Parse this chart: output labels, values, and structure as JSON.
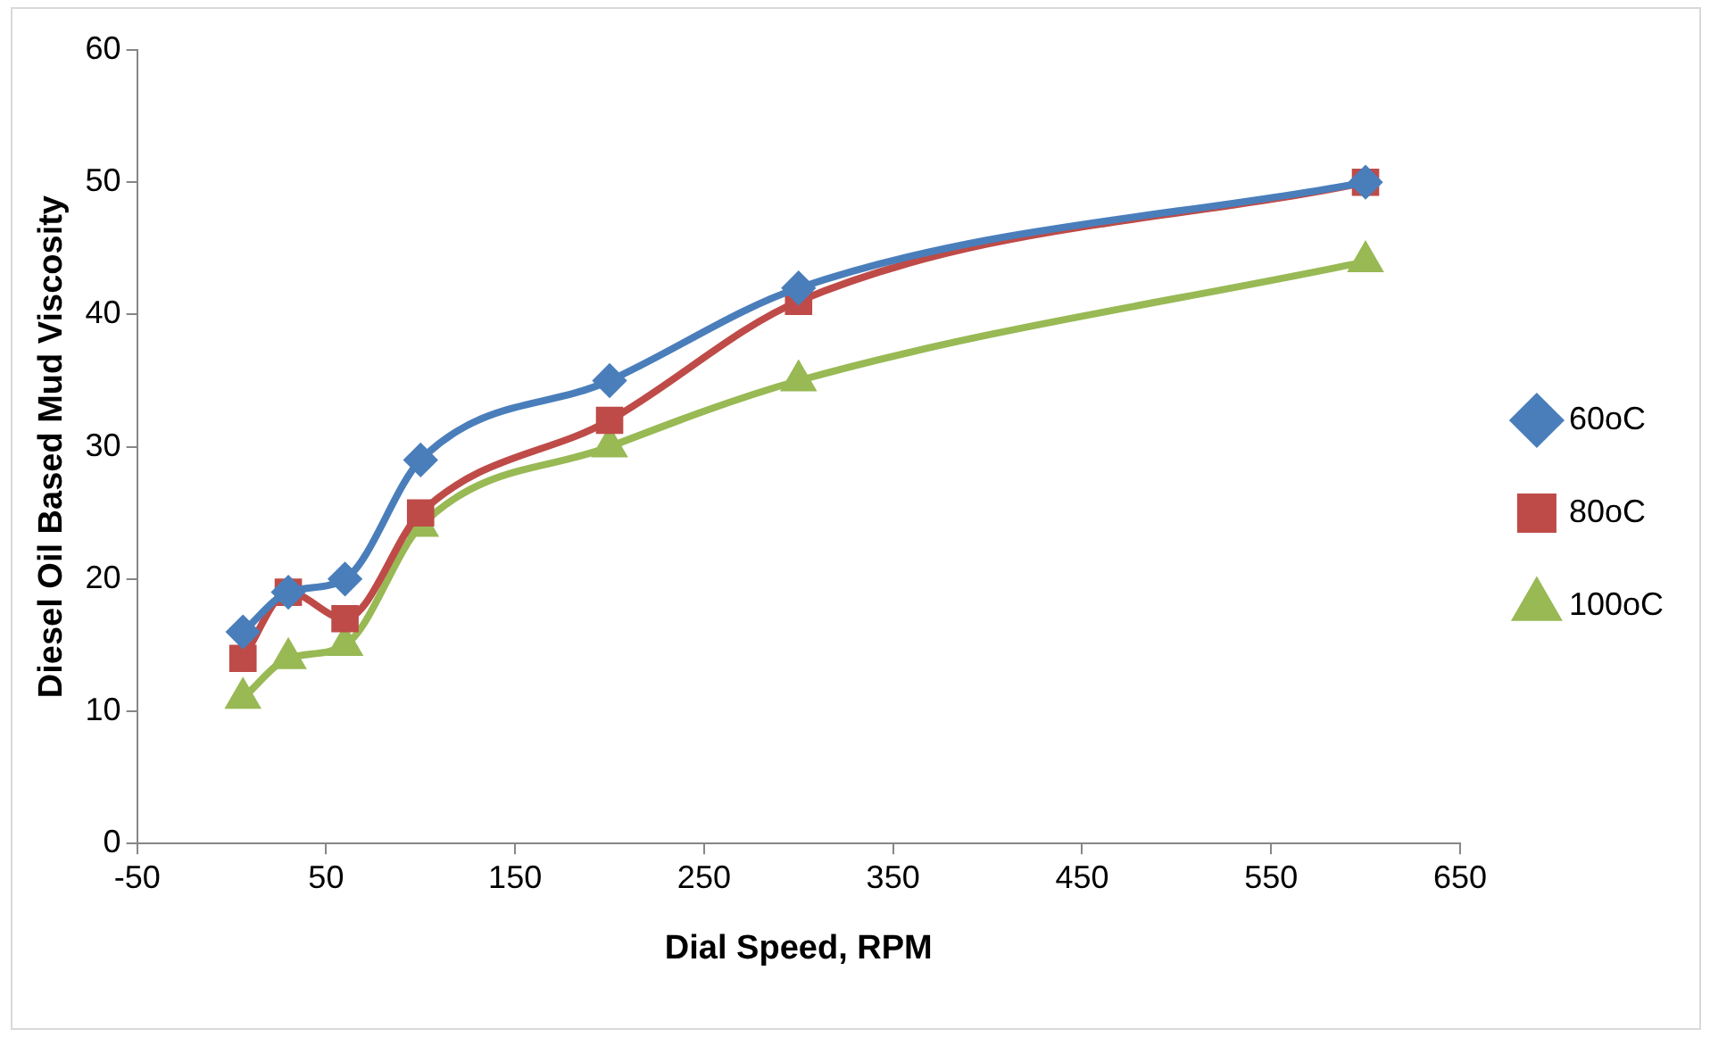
{
  "chart_data": {
    "type": "line",
    "xlabel": "Dial Speed, RPM",
    "ylabel": "Diesel Oil Based Mud Viscosity",
    "x": [
      6,
      30,
      60,
      100,
      200,
      300,
      600
    ],
    "series": [
      {
        "name": "60oC",
        "color": "#4a7ebb",
        "marker": "diamond",
        "values": [
          16,
          19,
          20,
          29,
          35,
          42,
          50
        ]
      },
      {
        "name": "80oC",
        "color": "#be4b48",
        "marker": "square",
        "values": [
          14,
          19,
          17,
          25,
          32,
          41,
          50
        ]
      },
      {
        "name": "100oC",
        "color": "#98b954",
        "marker": "triangle",
        "values": [
          11,
          14,
          15,
          24,
          30,
          35,
          44
        ]
      }
    ],
    "xlim": [
      -50,
      650
    ],
    "xticks": [
      -50,
      50,
      150,
      250,
      350,
      450,
      550,
      650
    ],
    "ylim": [
      0,
      60
    ],
    "yticks": [
      0,
      10,
      20,
      30,
      40,
      50,
      60
    ],
    "grid": false,
    "legend": "right",
    "line_style": "solid"
  }
}
